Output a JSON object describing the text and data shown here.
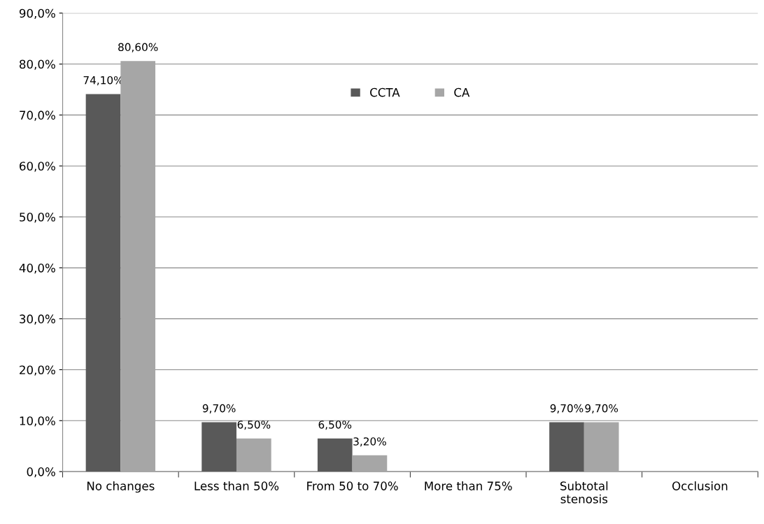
{
  "chart_data": {
    "type": "bar",
    "categories": [
      "No changes",
      "Less than 50%",
      "From 50 to 70%",
      "More than 75%",
      "Subtotal\nstenosis",
      "Occlusion"
    ],
    "series": [
      {
        "name": "CCTA",
        "color": "#595959",
        "values": [
          74.1,
          9.7,
          6.5,
          0,
          9.7,
          0
        ],
        "value_labels": [
          "74,10%",
          "9,70%",
          "6,50%",
          null,
          "9,70%",
          null
        ]
      },
      {
        "name": "CA",
        "color": "#a6a6a6",
        "values": [
          80.6,
          6.5,
          3.2,
          0,
          9.7,
          0
        ],
        "value_labels": [
          "80,60%",
          "6,50%",
          "3,20%",
          null,
          "9,70%",
          null
        ]
      }
    ],
    "ylim": [
      0,
      90
    ],
    "yticks": [
      {
        "value": 0,
        "label": "0,0%"
      },
      {
        "value": 10,
        "label": "10,0%"
      },
      {
        "value": 20,
        "label": "20,0%"
      },
      {
        "value": 30,
        "label": "30,0%"
      },
      {
        "value": 40,
        "label": "40,0%"
      },
      {
        "value": 50,
        "label": "50,0%"
      },
      {
        "value": 60,
        "label": "60,0%"
      },
      {
        "value": 70,
        "label": "70,0%"
      },
      {
        "value": 80,
        "label": "80,0%"
      },
      {
        "value": 90,
        "label": "90,0%"
      }
    ],
    "grid": "y",
    "legend": "top"
  }
}
